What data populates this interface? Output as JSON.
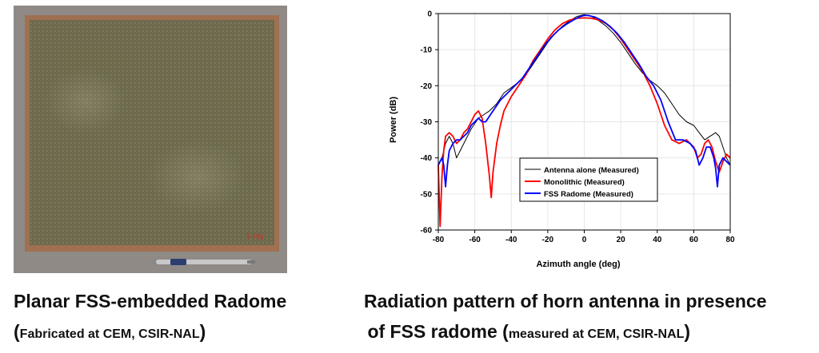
{
  "photo": {
    "corner_label": "T-PN",
    "colors": {
      "board": "#6d6a4e",
      "frame": "#a07050",
      "background": "#8f8a86"
    }
  },
  "captions": {
    "left": {
      "line1": "Planar FSS-embedded Radome",
      "line2_open": "(",
      "line2_small": "Fabricated at CEM, CSIR-NAL",
      "line2_close": ")"
    },
    "right": {
      "line1": "Radiation pattern of horn antenna in presence",
      "line2_main": "of FSS radome ",
      "line2_open": "(",
      "line2_small": "measured at CEM, CSIR-NAL",
      "line2_close": ")"
    }
  },
  "chart_data": {
    "type": "line",
    "title": "",
    "xlabel": "Azimuth angle (deg)",
    "ylabel": "Power (dB)",
    "xlim": [
      -80,
      80
    ],
    "ylim": [
      -60,
      0
    ],
    "xticks": [
      -80,
      -60,
      -40,
      -20,
      0,
      20,
      40,
      60,
      80
    ],
    "yticks": [
      0,
      -10,
      -20,
      -30,
      -40,
      -50,
      -60
    ],
    "grid": true,
    "legend_position": "lower-center",
    "series": [
      {
        "name": "Antenna alone (Measured)",
        "color": "#000000",
        "x": [
          -80,
          -78,
          -76,
          -74,
          -72,
          -70,
          -68,
          -65,
          -62,
          -58,
          -55,
          -52,
          -48,
          -44,
          -40,
          -36,
          -32,
          -28,
          -24,
          -20,
          -16,
          -12,
          -8,
          -4,
          0,
          4,
          8,
          12,
          16,
          20,
          24,
          28,
          32,
          36,
          40,
          44,
          48,
          52,
          56,
          60,
          63,
          66,
          69,
          72,
          74,
          76,
          78,
          80
        ],
        "y": [
          -42,
          -40,
          -36,
          -34,
          -36,
          -40,
          -38,
          -35,
          -32,
          -29,
          -28,
          -27,
          -25,
          -22,
          -20.5,
          -19,
          -17,
          -14,
          -11,
          -8,
          -5.5,
          -3.5,
          -2,
          -0.8,
          -0.3,
          -0.8,
          -2,
          -3.5,
          -5.5,
          -8,
          -11,
          -14,
          -16.5,
          -18.5,
          -20,
          -22,
          -25,
          -28,
          -30,
          -31,
          -33,
          -35,
          -34,
          -33,
          -34,
          -37,
          -40,
          -42
        ]
      },
      {
        "name": "Monolithic (Measured)",
        "color": "#ff0000",
        "x": [
          -80,
          -79,
          -78,
          -77,
          -76,
          -74,
          -72,
          -70,
          -68,
          -66,
          -64,
          -62,
          -60,
          -58,
          -56,
          -54,
          -52,
          -51,
          -50,
          -48,
          -46,
          -44,
          -40,
          -36,
          -32,
          -28,
          -24,
          -20,
          -16,
          -12,
          -8,
          -4,
          0,
          4,
          8,
          12,
          16,
          20,
          24,
          28,
          32,
          36,
          40,
          44,
          48,
          52,
          56,
          60,
          62,
          64,
          66,
          68,
          70,
          72,
          74,
          76,
          78,
          80
        ],
        "y": [
          -42,
          -59,
          -45,
          -38,
          -34,
          -33,
          -34,
          -36,
          -35,
          -33,
          -32,
          -30,
          -28,
          -27,
          -29,
          -36,
          -45,
          -51,
          -44,
          -36,
          -31,
          -27,
          -23,
          -20,
          -17,
          -13,
          -10,
          -7,
          -4.5,
          -2.8,
          -1.8,
          -1.3,
          -1.2,
          -1.3,
          -1.8,
          -2.8,
          -4.5,
          -7,
          -10,
          -13,
          -16,
          -20,
          -25,
          -31,
          -35,
          -36,
          -35,
          -37,
          -40,
          -39,
          -36,
          -35,
          -37,
          -41,
          -44,
          -41,
          -39,
          -40
        ]
      },
      {
        "name": "FSS Radome (Measured)",
        "color": "#0000ff",
        "x": [
          -80,
          -78,
          -77,
          -76,
          -75,
          -74,
          -72,
          -70,
          -68,
          -66,
          -64,
          -62,
          -60,
          -58,
          -56,
          -54,
          -50,
          -46,
          -42,
          -38,
          -34,
          -30,
          -26,
          -22,
          -18,
          -14,
          -10,
          -6,
          -2,
          0,
          2,
          6,
          10,
          14,
          18,
          22,
          26,
          30,
          34,
          38,
          42,
          46,
          50,
          54,
          58,
          61,
          63,
          65,
          67,
          69,
          71,
          72,
          73,
          74,
          76,
          78,
          80
        ],
        "y": [
          -42,
          -40,
          -42,
          -48,
          -42,
          -38,
          -36,
          -35,
          -35,
          -34,
          -33,
          -31,
          -30,
          -29,
          -30,
          -30,
          -27,
          -24,
          -22,
          -20,
          -18,
          -15,
          -12,
          -9,
          -6.5,
          -4.5,
          -3,
          -1.8,
          -0.8,
          -0.5,
          -0.5,
          -1,
          -2,
          -3.5,
          -5.5,
          -8,
          -11,
          -14,
          -17.5,
          -20,
          -24,
          -30,
          -35,
          -35,
          -36,
          -38,
          -42,
          -40,
          -37,
          -37,
          -40,
          -43,
          -48,
          -42,
          -40,
          -41,
          -42
        ]
      }
    ]
  }
}
